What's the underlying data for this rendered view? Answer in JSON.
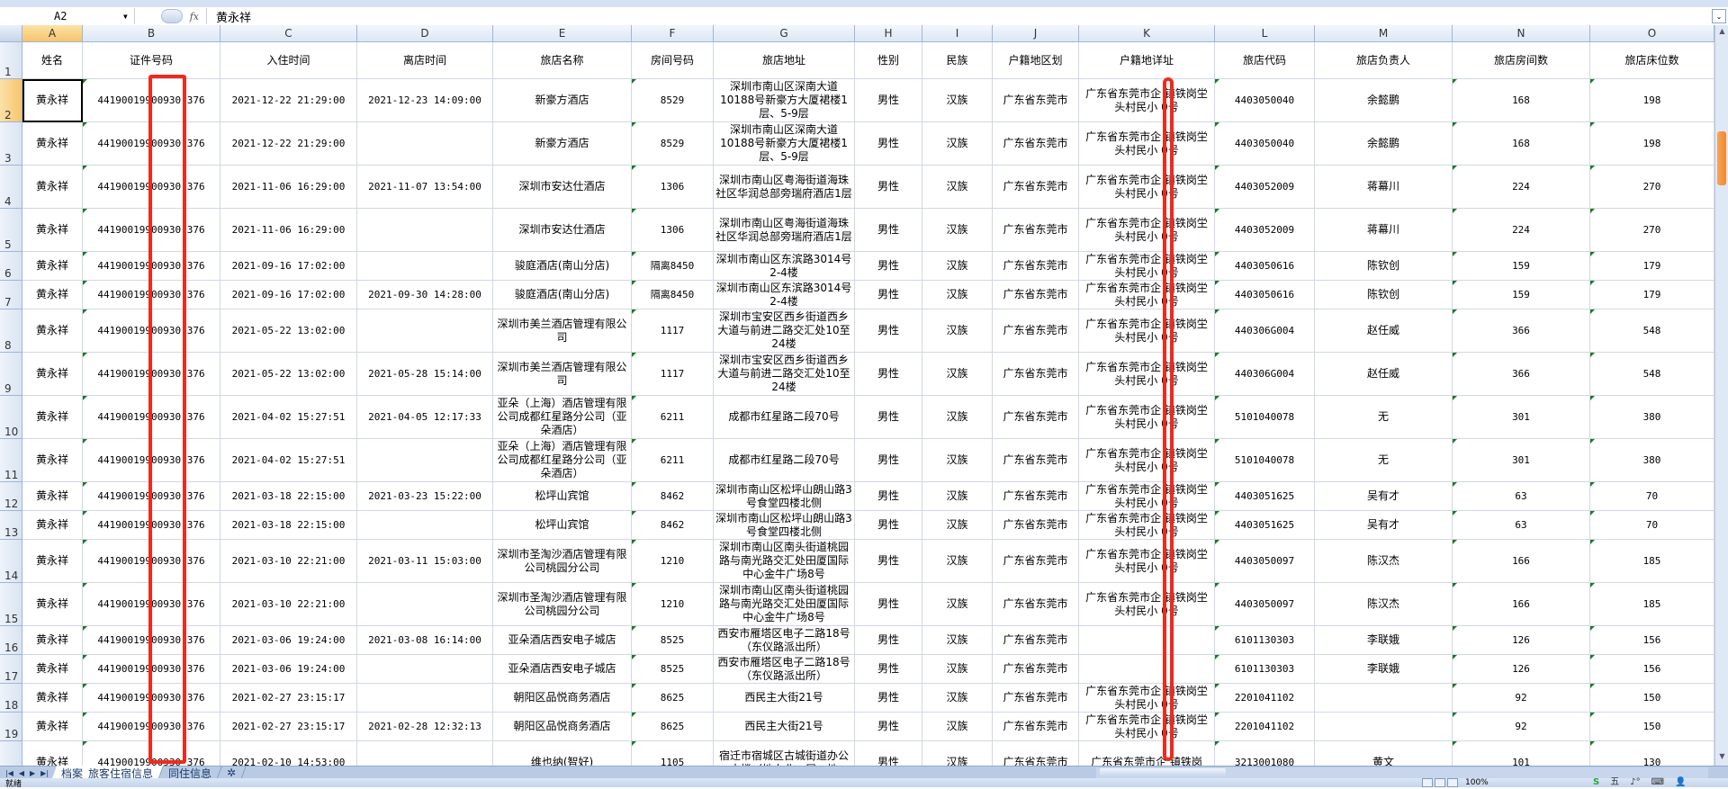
{
  "formula_bar": {
    "cell_ref": "A2",
    "fx_label": "fx",
    "value": "黄永祥"
  },
  "columns": [
    "A",
    "B",
    "C",
    "D",
    "E",
    "F",
    "G",
    "H",
    "I",
    "J",
    "K",
    "L",
    "M",
    "N",
    "O"
  ],
  "selected_column": "A",
  "selected_row": 2,
  "header_row": [
    "姓名",
    "证件号码",
    "入住时间",
    "离店时间",
    "旅店名称",
    "房间号码",
    "旅店地址",
    "性别",
    "民族",
    "户籍地区划",
    "户籍地详址",
    "旅店代码",
    "旅店负责人",
    "旅店房间数",
    "旅店床位数"
  ],
  "rows": [
    [
      "黄永祥",
      "44190019900930 376",
      "2021-12-22 21:29:00",
      "2021-12-23 14:09:00",
      "新豪方酒店",
      "8529",
      "深圳市南山区深南大道10188号新豪方大厦裙楼1层、5-9层",
      "男性",
      "汉族",
      "广东省东莞市",
      "广东省东莞市企 镇铁岗坣头村民小 0号",
      "4403050040",
      "余懿鹏",
      "168",
      "198"
    ],
    [
      "黄永祥",
      "44190019900930 376",
      "2021-12-22 21:29:00",
      "",
      "新豪方酒店",
      "8529",
      "深圳市南山区深南大道10188号新豪方大厦裙楼1层、5-9层",
      "男性",
      "汉族",
      "广东省东莞市",
      "广东省东莞市企 镇铁岗坣头村民小 0号",
      "4403050040",
      "余懿鹏",
      "168",
      "198"
    ],
    [
      "黄永祥",
      "44190019900930 376",
      "2021-11-06 16:29:00",
      "2021-11-07 13:54:00",
      "深圳市安达仕酒店",
      "1306",
      "深圳市南山区粤海街道海珠社区华润总部旁瑞府酒店1层",
      "男性",
      "汉族",
      "广东省东莞市",
      "广东省东莞市企 镇铁岗坣头村民小 0号",
      "4403052009",
      "蒋幕川",
      "224",
      "270"
    ],
    [
      "黄永祥",
      "44190019900930 376",
      "2021-11-06 16:29:00",
      "",
      "深圳市安达仕酒店",
      "1306",
      "深圳市南山区粤海街道海珠社区华润总部旁瑞府酒店1层",
      "男性",
      "汉族",
      "广东省东莞市",
      "广东省东莞市企 镇铁岗坣头村民小 0号",
      "4403052009",
      "蒋幕川",
      "224",
      "270"
    ],
    [
      "黄永祥",
      "44190019900930 376",
      "2021-09-16 17:02:00",
      "",
      "骏庭酒店(南山分店)",
      "隔离8450",
      "深圳市南山区东滨路3014号2-4楼",
      "男性",
      "汉族",
      "广东省东莞市",
      "广东省东莞市企 镇铁岗坣头村民小 0号",
      "4403050616",
      "陈钦创",
      "159",
      "179"
    ],
    [
      "黄永祥",
      "44190019900930 376",
      "2021-09-16 17:02:00",
      "2021-09-30 14:28:00",
      "骏庭酒店(南山分店)",
      "隔离8450",
      "深圳市南山区东滨路3014号2-4楼",
      "男性",
      "汉族",
      "广东省东莞市",
      "广东省东莞市企 镇铁岗坣头村民小 0号",
      "4403050616",
      "陈钦创",
      "159",
      "179"
    ],
    [
      "黄永祥",
      "44190019900930 376",
      "2021-05-22 13:02:00",
      "",
      "深圳市美兰酒店管理有限公司",
      "1117",
      "深圳市宝安区西乡街道西乡大道与前进二路交汇处10至24楼",
      "男性",
      "汉族",
      "广东省东莞市",
      "广东省东莞市企 镇铁岗坣头村民小 0号",
      "440306G004",
      "赵任威",
      "366",
      "548"
    ],
    [
      "黄永祥",
      "44190019900930 376",
      "2021-05-22 13:02:00",
      "2021-05-28 15:14:00",
      "深圳市美兰酒店管理有限公司",
      "1117",
      "深圳市宝安区西乡街道西乡大道与前进二路交汇处10至24楼",
      "男性",
      "汉族",
      "广东省东莞市",
      "广东省东莞市企 镇铁岗坣头村民小 0号",
      "440306G004",
      "赵任威",
      "366",
      "548"
    ],
    [
      "黄永祥",
      "44190019900930 376",
      "2021-04-02 15:27:51",
      "2021-04-05 12:17:33",
      "亚朵（上海）酒店管理有限公司成都红星路分公司（亚朵酒店）",
      "6211",
      "成都市红星路二段70号",
      "男性",
      "汉族",
      "广东省东莞市",
      "广东省东莞市企 镇铁岗坣头村民小 0号",
      "5101040078",
      "无",
      "301",
      "380"
    ],
    [
      "黄永祥",
      "44190019900930 376",
      "2021-04-02 15:27:51",
      "",
      "亚朵（上海）酒店管理有限公司成都红星路分公司（亚朵酒店）",
      "6211",
      "成都市红星路二段70号",
      "男性",
      "汉族",
      "广东省东莞市",
      "广东省东莞市企 镇铁岗坣头村民小 0号",
      "5101040078",
      "无",
      "301",
      "380"
    ],
    [
      "黄永祥",
      "44190019900930 376",
      "2021-03-18 22:15:00",
      "2021-03-23 15:22:00",
      "松坪山宾馆",
      "8462",
      "深圳市南山区松坪山朗山路3号食堂四楼北侧",
      "男性",
      "汉族",
      "广东省东莞市",
      "广东省东莞市企 镇铁岗坣头村民小 0号",
      "4403051625",
      "吴有才",
      "63",
      "70"
    ],
    [
      "黄永祥",
      "44190019900930 376",
      "2021-03-18 22:15:00",
      "",
      "松坪山宾馆",
      "8462",
      "深圳市南山区松坪山朗山路3号食堂四楼北侧",
      "男性",
      "汉族",
      "广东省东莞市",
      "广东省东莞市企 镇铁岗坣头村民小 0号",
      "4403051625",
      "吴有才",
      "63",
      "70"
    ],
    [
      "黄永祥",
      "44190019900930 376",
      "2021-03-10 22:21:00",
      "2021-03-11 15:03:00",
      "深圳市圣淘沙酒店管理有限公司桃园分公司",
      "1210",
      "深圳市南山区南头街道桃园路与南光路交汇处田厦国际中心金牛广场8号",
      "男性",
      "汉族",
      "广东省东莞市",
      "广东省东莞市企 镇铁岗坣头村民小 0号",
      "4403050097",
      "陈汉杰",
      "166",
      "185"
    ],
    [
      "黄永祥",
      "44190019900930 376",
      "2021-03-10 22:21:00",
      "",
      "深圳市圣淘沙酒店管理有限公司桃园分公司",
      "1210",
      "深圳市南山区南头街道桃园路与南光路交汇处田厦国际中心金牛广场8号",
      "男性",
      "汉族",
      "广东省东莞市",
      "广东省东莞市企 镇铁岗坣头村民小 0号",
      "4403050097",
      "陈汉杰",
      "166",
      "185"
    ],
    [
      "黄永祥",
      "44190019900930 376",
      "2021-03-06 19:24:00",
      "2021-03-08 16:14:00",
      "亚朵酒店西安电子城店",
      "8525",
      "西安市雁塔区电子二路18号（东仪路派出所）",
      "男性",
      "汉族",
      "广东省东莞市",
      "",
      "6101130303",
      "李联娥",
      "126",
      "156"
    ],
    [
      "黄永祥",
      "44190019900930 376",
      "2021-03-06 19:24:00",
      "",
      "亚朵酒店西安电子城店",
      "8525",
      "西安市雁塔区电子二路18号（东仪路派出所）",
      "男性",
      "汉族",
      "广东省东莞市",
      "",
      "6101130303",
      "李联娥",
      "126",
      "156"
    ],
    [
      "黄永祥",
      "44190019900930 376",
      "2021-02-27 23:15:17",
      "",
      "朝阳区品悦商务酒店",
      "8625",
      "西民主大街21号",
      "男性",
      "汉族",
      "广东省东莞市",
      "广东省东莞市企 镇铁岗坣头村民小 0号",
      "2201041102",
      "",
      "92",
      "150"
    ],
    [
      "黄永祥",
      "44190019900930 376",
      "2021-02-27 23:15:17",
      "2021-02-28 12:32:13",
      "朝阳区品悦商务酒店",
      "8625",
      "西民主大街21号",
      "男性",
      "汉族",
      "广东省东莞市",
      "广东省东莞市企 镇铁岗坣头村民小 0号",
      "2201041102",
      "",
      "92",
      "150"
    ],
    [
      "黄永祥",
      "44190019900930 376",
      "2021-02-10 14:53:00",
      "",
      "维也纳(智好)",
      "1105",
      "宿迁市宿城区古城街道办公大楼（地上北一层、地",
      "男性",
      "汉族",
      "广东省东莞市",
      "广东省东莞市企 镇铁岗",
      "3213001080",
      "黄文",
      "101",
      "130"
    ]
  ],
  "sheet_tabs": [
    {
      "label": "档案_旅客住宿信息",
      "active": true
    },
    {
      "label": "同住信息",
      "active": false
    }
  ],
  "status": {
    "ready": "就绪",
    "zoom": "100%"
  },
  "ime": {
    "logo": "S",
    "mode": "五"
  },
  "colors": {
    "highlight_box": "#ee2a1f",
    "header_selected": "#f7c46b",
    "grid_line": "#d0d7e5",
    "error_triangle": "#1e7a1e"
  }
}
